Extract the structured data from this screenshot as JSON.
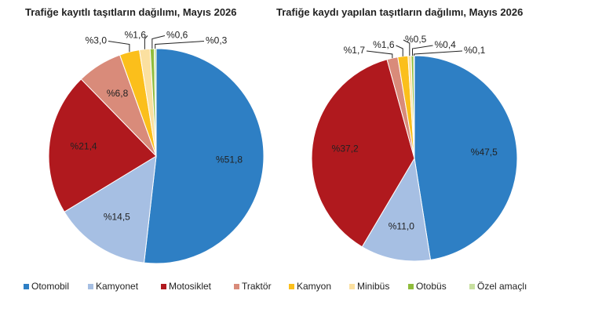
{
  "chart_data": [
    {
      "type": "pie",
      "title": "Trafiğe kayıtlı taşıtların dağılımı, Mayıs 2026",
      "categories": [
        "Otomobil",
        "Kamyonet",
        "Motosiklet",
        "Traktör",
        "Kamyon",
        "Minibüs",
        "Otobüs",
        "Özel amaçlı"
      ],
      "values": [
        51.8,
        14.5,
        21.4,
        6.8,
        3.0,
        1.6,
        0.6,
        0.3
      ],
      "value_labels": [
        "%51,8",
        "%14,5",
        "%21,4",
        "%6,8",
        "%3,0",
        "%1,6",
        "%0,6",
        "%0,3"
      ],
      "colors": [
        "#2e7fc4",
        "#a6bfe3",
        "#b0191e",
        "#d98b7a",
        "#fbbf1b",
        "#fbe0a0",
        "#8fbc3c",
        "#c8e0a0"
      ]
    },
    {
      "type": "pie",
      "title": "Trafiğe kaydı yapılan taşıtların dağılımı, Mayıs 2026",
      "categories": [
        "Otomobil",
        "Kamyonet",
        "Motosiklet",
        "Traktör",
        "Kamyon",
        "Minibüs",
        "Otobüs",
        "Özel amaçlı"
      ],
      "values": [
        47.5,
        11.0,
        37.2,
        1.7,
        1.6,
        0.5,
        0.4,
        0.1
      ],
      "value_labels": [
        "%47,5",
        "%11,0",
        "%37,2",
        "%1,7",
        "%1,6",
        "%0,5",
        "%0,4",
        "%0,1"
      ],
      "colors": [
        "#2e7fc4",
        "#a6bfe3",
        "#b0191e",
        "#d98b7a",
        "#fbbf1b",
        "#fbe0a0",
        "#8fbc3c",
        "#c8e0a0"
      ]
    }
  ]
}
